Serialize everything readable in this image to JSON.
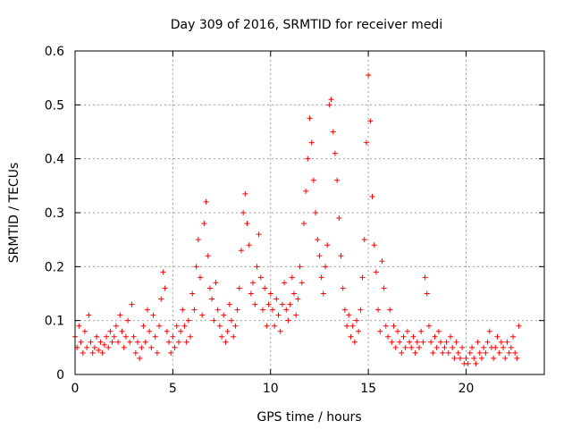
{
  "chart_data": {
    "type": "scatter",
    "title": "Day 309 of 2016, SRMTID for receiver medi",
    "xlabel": "GPS time / hours",
    "ylabel": "SRMTID / TECUs",
    "xlim": [
      0,
      24
    ],
    "ylim": [
      0,
      0.6
    ],
    "xticks": [
      0,
      5,
      10,
      15,
      20
    ],
    "yticks": [
      0,
      0.1,
      0.2,
      0.3,
      0.4,
      0.5,
      0.6
    ],
    "x_tick_labels": [
      "0",
      "5",
      "10",
      "15",
      "20"
    ],
    "y_tick_labels": [
      "0",
      "0.1",
      "0.2",
      "0.3",
      "0.4",
      "0.5",
      "0.6"
    ],
    "grid": true,
    "marker": "+",
    "series_color": "#ff0000",
    "series": [
      {
        "name": "SRMTID",
        "points": [
          [
            0.0,
            0.07
          ],
          [
            0.1,
            0.05
          ],
          [
            0.2,
            0.09
          ],
          [
            0.3,
            0.06
          ],
          [
            0.4,
            0.04
          ],
          [
            0.5,
            0.08
          ],
          [
            0.6,
            0.05
          ],
          [
            0.7,
            0.11
          ],
          [
            0.8,
            0.06
          ],
          [
            0.9,
            0.04
          ],
          [
            1.0,
            0.05
          ],
          [
            1.1,
            0.07
          ],
          [
            1.2,
            0.045
          ],
          [
            1.3,
            0.06
          ],
          [
            1.4,
            0.04
          ],
          [
            1.5,
            0.055
          ],
          [
            1.6,
            0.07
          ],
          [
            1.7,
            0.05
          ],
          [
            1.8,
            0.08
          ],
          [
            1.9,
            0.06
          ],
          [
            2.0,
            0.07
          ],
          [
            2.1,
            0.09
          ],
          [
            2.2,
            0.06
          ],
          [
            2.3,
            0.11
          ],
          [
            2.4,
            0.08
          ],
          [
            2.5,
            0.05
          ],
          [
            2.6,
            0.07
          ],
          [
            2.7,
            0.1
          ],
          [
            2.8,
            0.06
          ],
          [
            2.9,
            0.13
          ],
          [
            3.0,
            0.07
          ],
          [
            3.1,
            0.04
          ],
          [
            3.2,
            0.06
          ],
          [
            3.3,
            0.03
          ],
          [
            3.4,
            0.05
          ],
          [
            3.5,
            0.09
          ],
          [
            3.6,
            0.06
          ],
          [
            3.7,
            0.12
          ],
          [
            3.8,
            0.08
          ],
          [
            3.9,
            0.05
          ],
          [
            4.0,
            0.11
          ],
          [
            4.1,
            0.07
          ],
          [
            4.2,
            0.04
          ],
          [
            4.3,
            0.09
          ],
          [
            4.4,
            0.14
          ],
          [
            4.5,
            0.19
          ],
          [
            4.6,
            0.16
          ],
          [
            4.7,
            0.08
          ],
          [
            4.8,
            0.06
          ],
          [
            4.9,
            0.04
          ],
          [
            5.0,
            0.07
          ],
          [
            5.1,
            0.05
          ],
          [
            5.2,
            0.09
          ],
          [
            5.3,
            0.06
          ],
          [
            5.4,
            0.08
          ],
          [
            5.5,
            0.12
          ],
          [
            5.6,
            0.09
          ],
          [
            5.7,
            0.06
          ],
          [
            5.8,
            0.1
          ],
          [
            5.9,
            0.07
          ],
          [
            6.0,
            0.15
          ],
          [
            6.1,
            0.12
          ],
          [
            6.2,
            0.2
          ],
          [
            6.3,
            0.25
          ],
          [
            6.4,
            0.18
          ],
          [
            6.5,
            0.11
          ],
          [
            6.6,
            0.28
          ],
          [
            6.7,
            0.32
          ],
          [
            6.8,
            0.22
          ],
          [
            6.9,
            0.16
          ],
          [
            7.0,
            0.14
          ],
          [
            7.1,
            0.1
          ],
          [
            7.2,
            0.17
          ],
          [
            7.3,
            0.12
          ],
          [
            7.4,
            0.09
          ],
          [
            7.5,
            0.07
          ],
          [
            7.6,
            0.11
          ],
          [
            7.7,
            0.06
          ],
          [
            7.8,
            0.08
          ],
          [
            7.9,
            0.13
          ],
          [
            8.0,
            0.1
          ],
          [
            8.1,
            0.07
          ],
          [
            8.2,
            0.09
          ],
          [
            8.3,
            0.12
          ],
          [
            8.4,
            0.16
          ],
          [
            8.5,
            0.23
          ],
          [
            8.6,
            0.3
          ],
          [
            8.7,
            0.335
          ],
          [
            8.8,
            0.28
          ],
          [
            8.9,
            0.24
          ],
          [
            9.0,
            0.15
          ],
          [
            9.1,
            0.17
          ],
          [
            9.2,
            0.13
          ],
          [
            9.3,
            0.2
          ],
          [
            9.4,
            0.26
          ],
          [
            9.5,
            0.18
          ],
          [
            9.6,
            0.12
          ],
          [
            9.7,
            0.16
          ],
          [
            9.8,
            0.09
          ],
          [
            9.9,
            0.13
          ],
          [
            10.0,
            0.15
          ],
          [
            10.1,
            0.12
          ],
          [
            10.2,
            0.09
          ],
          [
            10.3,
            0.14
          ],
          [
            10.4,
            0.11
          ],
          [
            10.5,
            0.08
          ],
          [
            10.6,
            0.13
          ],
          [
            10.7,
            0.17
          ],
          [
            10.8,
            0.12
          ],
          [
            10.9,
            0.1
          ],
          [
            11.0,
            0.13
          ],
          [
            11.1,
            0.18
          ],
          [
            11.2,
            0.15
          ],
          [
            11.3,
            0.11
          ],
          [
            11.4,
            0.14
          ],
          [
            11.5,
            0.2
          ],
          [
            11.6,
            0.17
          ],
          [
            11.7,
            0.28
          ],
          [
            11.8,
            0.34
          ],
          [
            11.9,
            0.4
          ],
          [
            12.0,
            0.475
          ],
          [
            12.1,
            0.43
          ],
          [
            12.2,
            0.36
          ],
          [
            12.3,
            0.3
          ],
          [
            12.4,
            0.25
          ],
          [
            12.5,
            0.22
          ],
          [
            12.6,
            0.18
          ],
          [
            12.7,
            0.15
          ],
          [
            12.8,
            0.2
          ],
          [
            12.9,
            0.24
          ],
          [
            13.0,
            0.5
          ],
          [
            13.1,
            0.51
          ],
          [
            13.2,
            0.45
          ],
          [
            13.3,
            0.41
          ],
          [
            13.4,
            0.36
          ],
          [
            13.5,
            0.29
          ],
          [
            13.6,
            0.22
          ],
          [
            13.7,
            0.16
          ],
          [
            13.8,
            0.12
          ],
          [
            13.9,
            0.09
          ],
          [
            14.0,
            0.11
          ],
          [
            14.1,
            0.07
          ],
          [
            14.2,
            0.09
          ],
          [
            14.3,
            0.06
          ],
          [
            14.4,
            0.1
          ],
          [
            14.5,
            0.08
          ],
          [
            14.6,
            0.12
          ],
          [
            14.7,
            0.18
          ],
          [
            14.8,
            0.25
          ],
          [
            14.9,
            0.43
          ],
          [
            15.0,
            0.555
          ],
          [
            15.1,
            0.47
          ],
          [
            15.2,
            0.33
          ],
          [
            15.3,
            0.24
          ],
          [
            15.4,
            0.19
          ],
          [
            15.5,
            0.12
          ],
          [
            15.6,
            0.08
          ],
          [
            15.7,
            0.21
          ],
          [
            15.8,
            0.16
          ],
          [
            15.9,
            0.09
          ],
          [
            16.0,
            0.07
          ],
          [
            16.1,
            0.12
          ],
          [
            16.2,
            0.06
          ],
          [
            16.3,
            0.09
          ],
          [
            16.4,
            0.05
          ],
          [
            16.5,
            0.08
          ],
          [
            16.6,
            0.06
          ],
          [
            16.7,
            0.04
          ],
          [
            16.8,
            0.07
          ],
          [
            16.9,
            0.05
          ],
          [
            17.0,
            0.08
          ],
          [
            17.1,
            0.06
          ],
          [
            17.2,
            0.05
          ],
          [
            17.3,
            0.07
          ],
          [
            17.4,
            0.04
          ],
          [
            17.5,
            0.06
          ],
          [
            17.6,
            0.05
          ],
          [
            17.7,
            0.08
          ],
          [
            17.8,
            0.06
          ],
          [
            17.9,
            0.18
          ],
          [
            18.0,
            0.15
          ],
          [
            18.1,
            0.09
          ],
          [
            18.2,
            0.06
          ],
          [
            18.3,
            0.04
          ],
          [
            18.4,
            0.07
          ],
          [
            18.5,
            0.05
          ],
          [
            18.6,
            0.08
          ],
          [
            18.7,
            0.06
          ],
          [
            18.8,
            0.04
          ],
          [
            18.9,
            0.05
          ],
          [
            19.0,
            0.06
          ],
          [
            19.1,
            0.04
          ],
          [
            19.2,
            0.07
          ],
          [
            19.3,
            0.05
          ],
          [
            19.4,
            0.03
          ],
          [
            19.5,
            0.06
          ],
          [
            19.6,
            0.04
          ],
          [
            19.7,
            0.03
          ],
          [
            19.8,
            0.05
          ],
          [
            19.9,
            0.02
          ],
          [
            20.0,
            0.03
          ],
          [
            20.1,
            0.02
          ],
          [
            20.2,
            0.04
          ],
          [
            20.3,
            0.05
          ],
          [
            20.4,
            0.03
          ],
          [
            20.5,
            0.02
          ],
          [
            20.6,
            0.06
          ],
          [
            20.7,
            0.04
          ],
          [
            20.8,
            0.03
          ],
          [
            20.9,
            0.05
          ],
          [
            21.0,
            0.04
          ],
          [
            21.1,
            0.06
          ],
          [
            21.2,
            0.08
          ],
          [
            21.3,
            0.05
          ],
          [
            21.4,
            0.03
          ],
          [
            21.5,
            0.05
          ],
          [
            21.6,
            0.07
          ],
          [
            21.7,
            0.04
          ],
          [
            21.8,
            0.06
          ],
          [
            21.9,
            0.05
          ],
          [
            22.0,
            0.03
          ],
          [
            22.1,
            0.06
          ],
          [
            22.2,
            0.04
          ],
          [
            22.3,
            0.05
          ],
          [
            22.4,
            0.07
          ],
          [
            22.5,
            0.04
          ],
          [
            22.6,
            0.03
          ],
          [
            22.7,
            0.09
          ]
        ]
      }
    ]
  }
}
